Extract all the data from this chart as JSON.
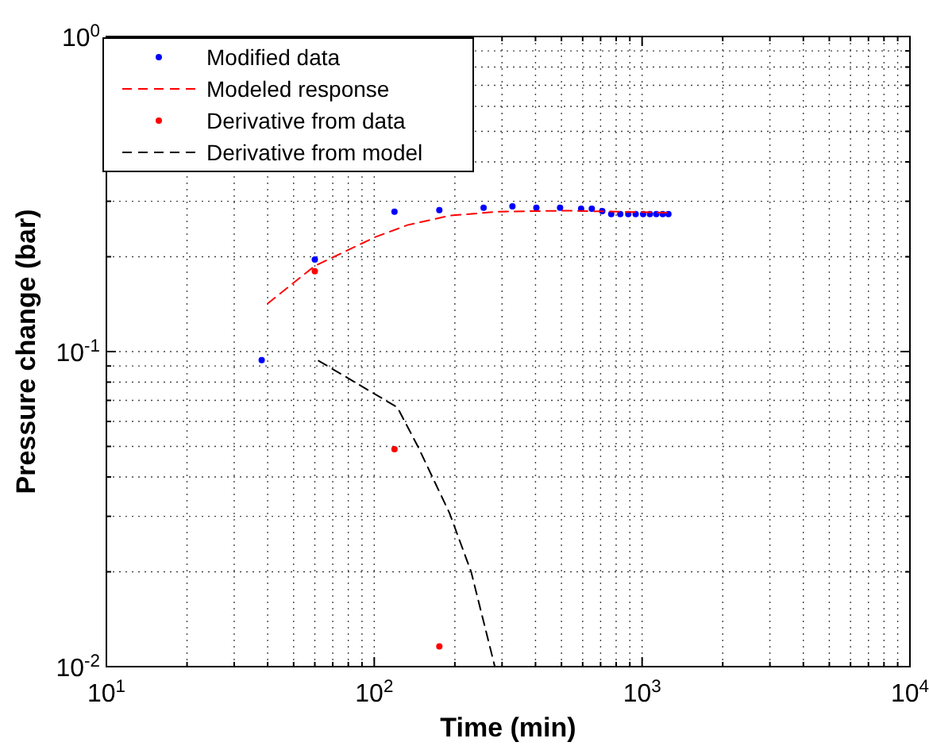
{
  "chart_data": {
    "type": "scatter",
    "xlabel": "Time (min)",
    "ylabel": "Pressure change (bar)",
    "log": "xy",
    "grid": true,
    "legend": "top left",
    "xlim": [
      10,
      10000
    ],
    "ylim": [
      0.01,
      1
    ],
    "xticks": [
      {
        "value": 10,
        "label": "10$^{1}$"
      },
      {
        "value": 20,
        "label": null
      },
      {
        "value": 30,
        "label": null
      },
      {
        "value": 40,
        "label": null
      },
      {
        "value": 50,
        "label": null
      },
      {
        "value": 60,
        "label": null
      },
      {
        "value": 70,
        "label": null
      },
      {
        "value": 80,
        "label": null
      },
      {
        "value": 90,
        "label": null
      },
      {
        "value": 100,
        "label": "10$^{2}$"
      },
      {
        "value": 200,
        "label": null
      },
      {
        "value": 300,
        "label": null
      },
      {
        "value": 400,
        "label": null
      },
      {
        "value": 500,
        "label": null
      },
      {
        "value": 600,
        "label": null
      },
      {
        "value": 700,
        "label": null
      },
      {
        "value": 800,
        "label": null
      },
      {
        "value": 900,
        "label": null
      },
      {
        "value": 1000,
        "label": "10$^{3}$"
      },
      {
        "value": 2000,
        "label": null
      },
      {
        "value": 3000,
        "label": null
      },
      {
        "value": 4000,
        "label": null
      },
      {
        "value": 5000,
        "label": null
      },
      {
        "value": 6000,
        "label": null
      },
      {
        "value": 7000,
        "label": null
      },
      {
        "value": 8000,
        "label": null
      },
      {
        "value": 9000,
        "label": null
      },
      {
        "value": 10000,
        "label": "10$^{4}$"
      }
    ],
    "yticks": [
      {
        "value": 0.01,
        "label": "10$^{-2}$"
      },
      {
        "value": 0.02,
        "label": null
      },
      {
        "value": 0.03,
        "label": null
      },
      {
        "value": 0.04,
        "label": null
      },
      {
        "value": 0.05,
        "label": null
      },
      {
        "value": 0.06,
        "label": null
      },
      {
        "value": 0.07,
        "label": null
      },
      {
        "value": 0.08,
        "label": null
      },
      {
        "value": 0.09,
        "label": null
      },
      {
        "value": 0.1,
        "label": "10$^{-1}$"
      },
      {
        "value": 0.2,
        "label": null
      },
      {
        "value": 0.3,
        "label": null
      },
      {
        "value": 0.4,
        "label": null
      },
      {
        "value": 0.5,
        "label": null
      },
      {
        "value": 0.6,
        "label": null
      },
      {
        "value": 0.7,
        "label": null
      },
      {
        "value": 0.8,
        "label": null
      },
      {
        "value": 0.9,
        "label": null
      },
      {
        "value": 1,
        "label": "10$^{0}$"
      }
    ],
    "series": [
      {
        "name": "Modified data",
        "marker": "circle",
        "color": "#0000ff",
        "x": [
          38,
          60,
          119,
          175,
          256,
          328,
          403,
          494,
          592,
          649,
          710,
          767,
          829,
          888,
          946,
          1009,
          1070,
          1130,
          1194,
          1254
        ],
        "values": [
          0.094,
          0.196,
          0.278,
          0.281,
          0.286,
          0.289,
          0.286,
          0.286,
          0.284,
          0.284,
          0.279,
          0.273,
          0.273,
          0.273,
          0.273,
          0.273,
          0.273,
          0.273,
          0.273,
          0.273
        ]
      },
      {
        "name": "Modeled response",
        "type": "line",
        "line_style": "dashed",
        "color": "#ff0000",
        "x": [
          40,
          60,
          101,
          133,
          191,
          288,
          521,
          1265
        ],
        "values": [
          0.142,
          0.187,
          0.231,
          0.252,
          0.27,
          0.278,
          0.28,
          0.276
        ]
      },
      {
        "name": "Derivative from data",
        "marker": "circle",
        "color": "#ff0000",
        "x": [
          60,
          119,
          175
        ],
        "values": [
          0.18,
          0.049,
          0.0116
        ]
      },
      {
        "name": "Derivative from model",
        "type": "line",
        "line_style": "dashed",
        "color": "#000000",
        "x": [
          62,
          122,
          146,
          191,
          230,
          282
        ],
        "values": [
          0.0935,
          0.0665,
          0.0497,
          0.0307,
          0.02,
          0.01
        ]
      }
    ]
  }
}
